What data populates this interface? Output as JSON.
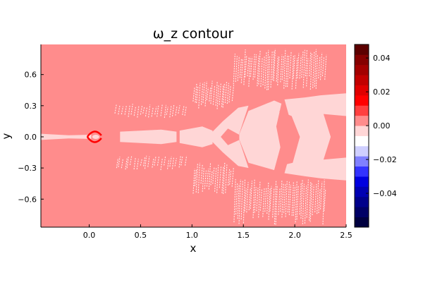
{
  "chart_data": {
    "type": "heatmap",
    "title": "ω_z contour",
    "xlabel": "x",
    "ylabel": "y",
    "xlim": [
      -0.47,
      2.5
    ],
    "ylim": [
      -0.87,
      0.89
    ],
    "x_ticks": [
      0.0,
      0.5,
      1.0,
      1.5,
      2.0,
      2.5
    ],
    "x_tick_labels": [
      "0.0",
      "0.5",
      "1.0",
      "1.5",
      "2.0",
      "2.5"
    ],
    "y_ticks": [
      -0.6,
      -0.3,
      0.0,
      0.3,
      0.6
    ],
    "y_tick_labels": [
      "−0.6",
      "−0.3",
      "0.0",
      "0.3",
      "0.6"
    ],
    "grid": false,
    "colorbar": {
      "range": [
        -0.06,
        0.048
      ],
      "levels": [
        {
          "lo": -0.06,
          "hi": -0.054,
          "color": "#000040"
        },
        {
          "lo": -0.054,
          "hi": -0.048,
          "color": "#000066"
        },
        {
          "lo": -0.048,
          "hi": -0.042,
          "color": "#00008b"
        },
        {
          "lo": -0.042,
          "hi": -0.036,
          "color": "#0000b3"
        },
        {
          "lo": -0.036,
          "hi": -0.03,
          "color": "#0000e0"
        },
        {
          "lo": -0.03,
          "hi": -0.024,
          "color": "#3333ff"
        },
        {
          "lo": -0.024,
          "hi": -0.018,
          "color": "#8080ff"
        },
        {
          "lo": -0.018,
          "hi": -0.012,
          "color": "#cfcfff"
        },
        {
          "lo": -0.012,
          "hi": -0.006,
          "color": "#ffffff"
        },
        {
          "lo": -0.006,
          "hi": 0.0,
          "color": "#ffd6d6"
        },
        {
          "lo": 0.0,
          "hi": 0.006,
          "color": "#ff8c8c"
        },
        {
          "lo": 0.006,
          "hi": 0.012,
          "color": "#ff4040"
        },
        {
          "lo": 0.012,
          "hi": 0.018,
          "color": "#ff0000"
        },
        {
          "lo": 0.018,
          "hi": 0.024,
          "color": "#e00000"
        },
        {
          "lo": 0.024,
          "hi": 0.03,
          "color": "#c20000"
        },
        {
          "lo": 0.03,
          "hi": 0.036,
          "color": "#a30000"
        },
        {
          "lo": 0.036,
          "hi": 0.042,
          "color": "#850000"
        },
        {
          "lo": 0.042,
          "hi": 0.048,
          "color": "#5c0000"
        }
      ],
      "ticks": [
        -0.04,
        -0.02,
        0.0,
        0.02,
        0.04
      ],
      "tick_labels": [
        "−0.04",
        "−0.02",
        "0.00",
        "0.02",
        "0.04"
      ]
    },
    "colors": {
      "background_level": "#ff8c8c",
      "wake_level": "#ffd6d6",
      "streak_level": "#ffffff",
      "core_level": "#ff0000"
    },
    "regions": [
      {
        "name": "wake-centerline-streak",
        "level": 0.012,
        "polygon": [
          [
            -0.47,
            -0.015
          ],
          [
            -0.2,
            -0.012
          ],
          [
            0.0,
            -0.01
          ],
          [
            0.0,
            0.01
          ],
          [
            -0.2,
            0.012
          ],
          [
            -0.47,
            0.015
          ]
        ]
      },
      {
        "name": "wake-strip-1",
        "level": -0.003,
        "polygon": [
          [
            -0.47,
            0.03
          ],
          [
            -0.2,
            0.015
          ],
          [
            0.02,
            0.02
          ],
          [
            0.02,
            -0.02
          ],
          [
            -0.2,
            -0.015
          ],
          [
            -0.47,
            -0.03
          ]
        ]
      },
      {
        "name": "wake-strip-2",
        "level": -0.003,
        "polygon": [
          [
            0.3,
            0.05
          ],
          [
            0.7,
            0.07
          ],
          [
            0.85,
            0.05
          ],
          [
            0.85,
            -0.05
          ],
          [
            0.7,
            -0.07
          ],
          [
            0.3,
            -0.05
          ]
        ]
      },
      {
        "name": "wake-strip-3",
        "level": -0.003,
        "polygon": [
          [
            0.88,
            0.06
          ],
          [
            1.1,
            0.1
          ],
          [
            1.2,
            0.06
          ],
          [
            1.2,
            -0.07
          ],
          [
            1.1,
            -0.1
          ],
          [
            0.88,
            -0.06
          ]
        ]
      },
      {
        "name": "wake-lobe-1",
        "level": -0.003,
        "polygon": [
          [
            1.15,
            0.0
          ],
          [
            1.3,
            0.15
          ],
          [
            1.45,
            0.28
          ],
          [
            1.55,
            0.3
          ],
          [
            1.5,
            0.15
          ],
          [
            1.45,
            0.0
          ],
          [
            1.5,
            -0.15
          ],
          [
            1.55,
            -0.3
          ],
          [
            1.45,
            -0.28
          ],
          [
            1.3,
            -0.15
          ]
        ]
      },
      {
        "name": "wake-lobe-2",
        "level": -0.003,
        "polygon": [
          [
            1.55,
            0.25
          ],
          [
            1.8,
            0.35
          ],
          [
            1.87,
            0.32
          ],
          [
            1.82,
            0.1
          ],
          [
            1.86,
            -0.1
          ],
          [
            1.8,
            -0.32
          ],
          [
            1.55,
            -0.25
          ],
          [
            1.45,
            0.0
          ]
        ]
      },
      {
        "name": "wake-lobe-3",
        "level": -0.003,
        "polygon": [
          [
            1.9,
            0.36
          ],
          [
            2.1,
            0.38
          ],
          [
            2.25,
            0.4
          ],
          [
            2.5,
            0.42
          ],
          [
            2.5,
            -0.42
          ],
          [
            2.25,
            -0.4
          ],
          [
            2.1,
            -0.38
          ],
          [
            1.9,
            -0.35
          ],
          [
            2.0,
            0.0
          ]
        ]
      },
      {
        "name": "wake-inner-core-1",
        "level": 0.003,
        "polygon": [
          [
            1.35,
            0.08
          ],
          [
            1.46,
            0.02
          ],
          [
            1.46,
            -0.03
          ],
          [
            1.35,
            -0.08
          ],
          [
            1.28,
            0.0
          ]
        ]
      },
      {
        "name": "wake-inner-core-2",
        "level": 0.003,
        "polygon": [
          [
            1.85,
            0.25
          ],
          [
            1.97,
            0.2
          ],
          [
            2.05,
            0.0
          ],
          [
            1.98,
            -0.25
          ],
          [
            1.85,
            -0.28
          ],
          [
            1.9,
            0.0
          ]
        ]
      },
      {
        "name": "wake-inner-core-3",
        "level": 0.003,
        "polygon": [
          [
            2.28,
            0.22
          ],
          [
            2.5,
            0.2
          ],
          [
            2.5,
            -0.2
          ],
          [
            2.28,
            -0.22
          ],
          [
            2.35,
            0.0
          ]
        ]
      }
    ],
    "cylinder_core": {
      "x": 0.05,
      "y": 0.0,
      "level": 0.015
    },
    "streaks": [
      {
        "x0": 0.25,
        "x1": 0.95,
        "ymin": 0.18,
        "ymax": 0.32,
        "count": 24,
        "side": "top"
      },
      {
        "x0": 0.25,
        "x1": 0.95,
        "ymin": -0.32,
        "ymax": -0.18,
        "count": 24,
        "side": "bottom"
      },
      {
        "x0": 1.0,
        "x1": 1.4,
        "ymin": 0.25,
        "ymax": 0.55,
        "count": 20,
        "side": "top"
      },
      {
        "x0": 1.0,
        "x1": 1.4,
        "ymin": -0.55,
        "ymax": -0.25,
        "count": 20,
        "side": "bottom"
      },
      {
        "x0": 1.4,
        "x1": 2.3,
        "ymin": 0.45,
        "ymax": 0.85,
        "count": 48,
        "side": "top"
      },
      {
        "x0": 1.4,
        "x1": 2.3,
        "ymin": -0.85,
        "ymax": -0.4,
        "count": 48,
        "side": "bottom"
      }
    ]
  }
}
